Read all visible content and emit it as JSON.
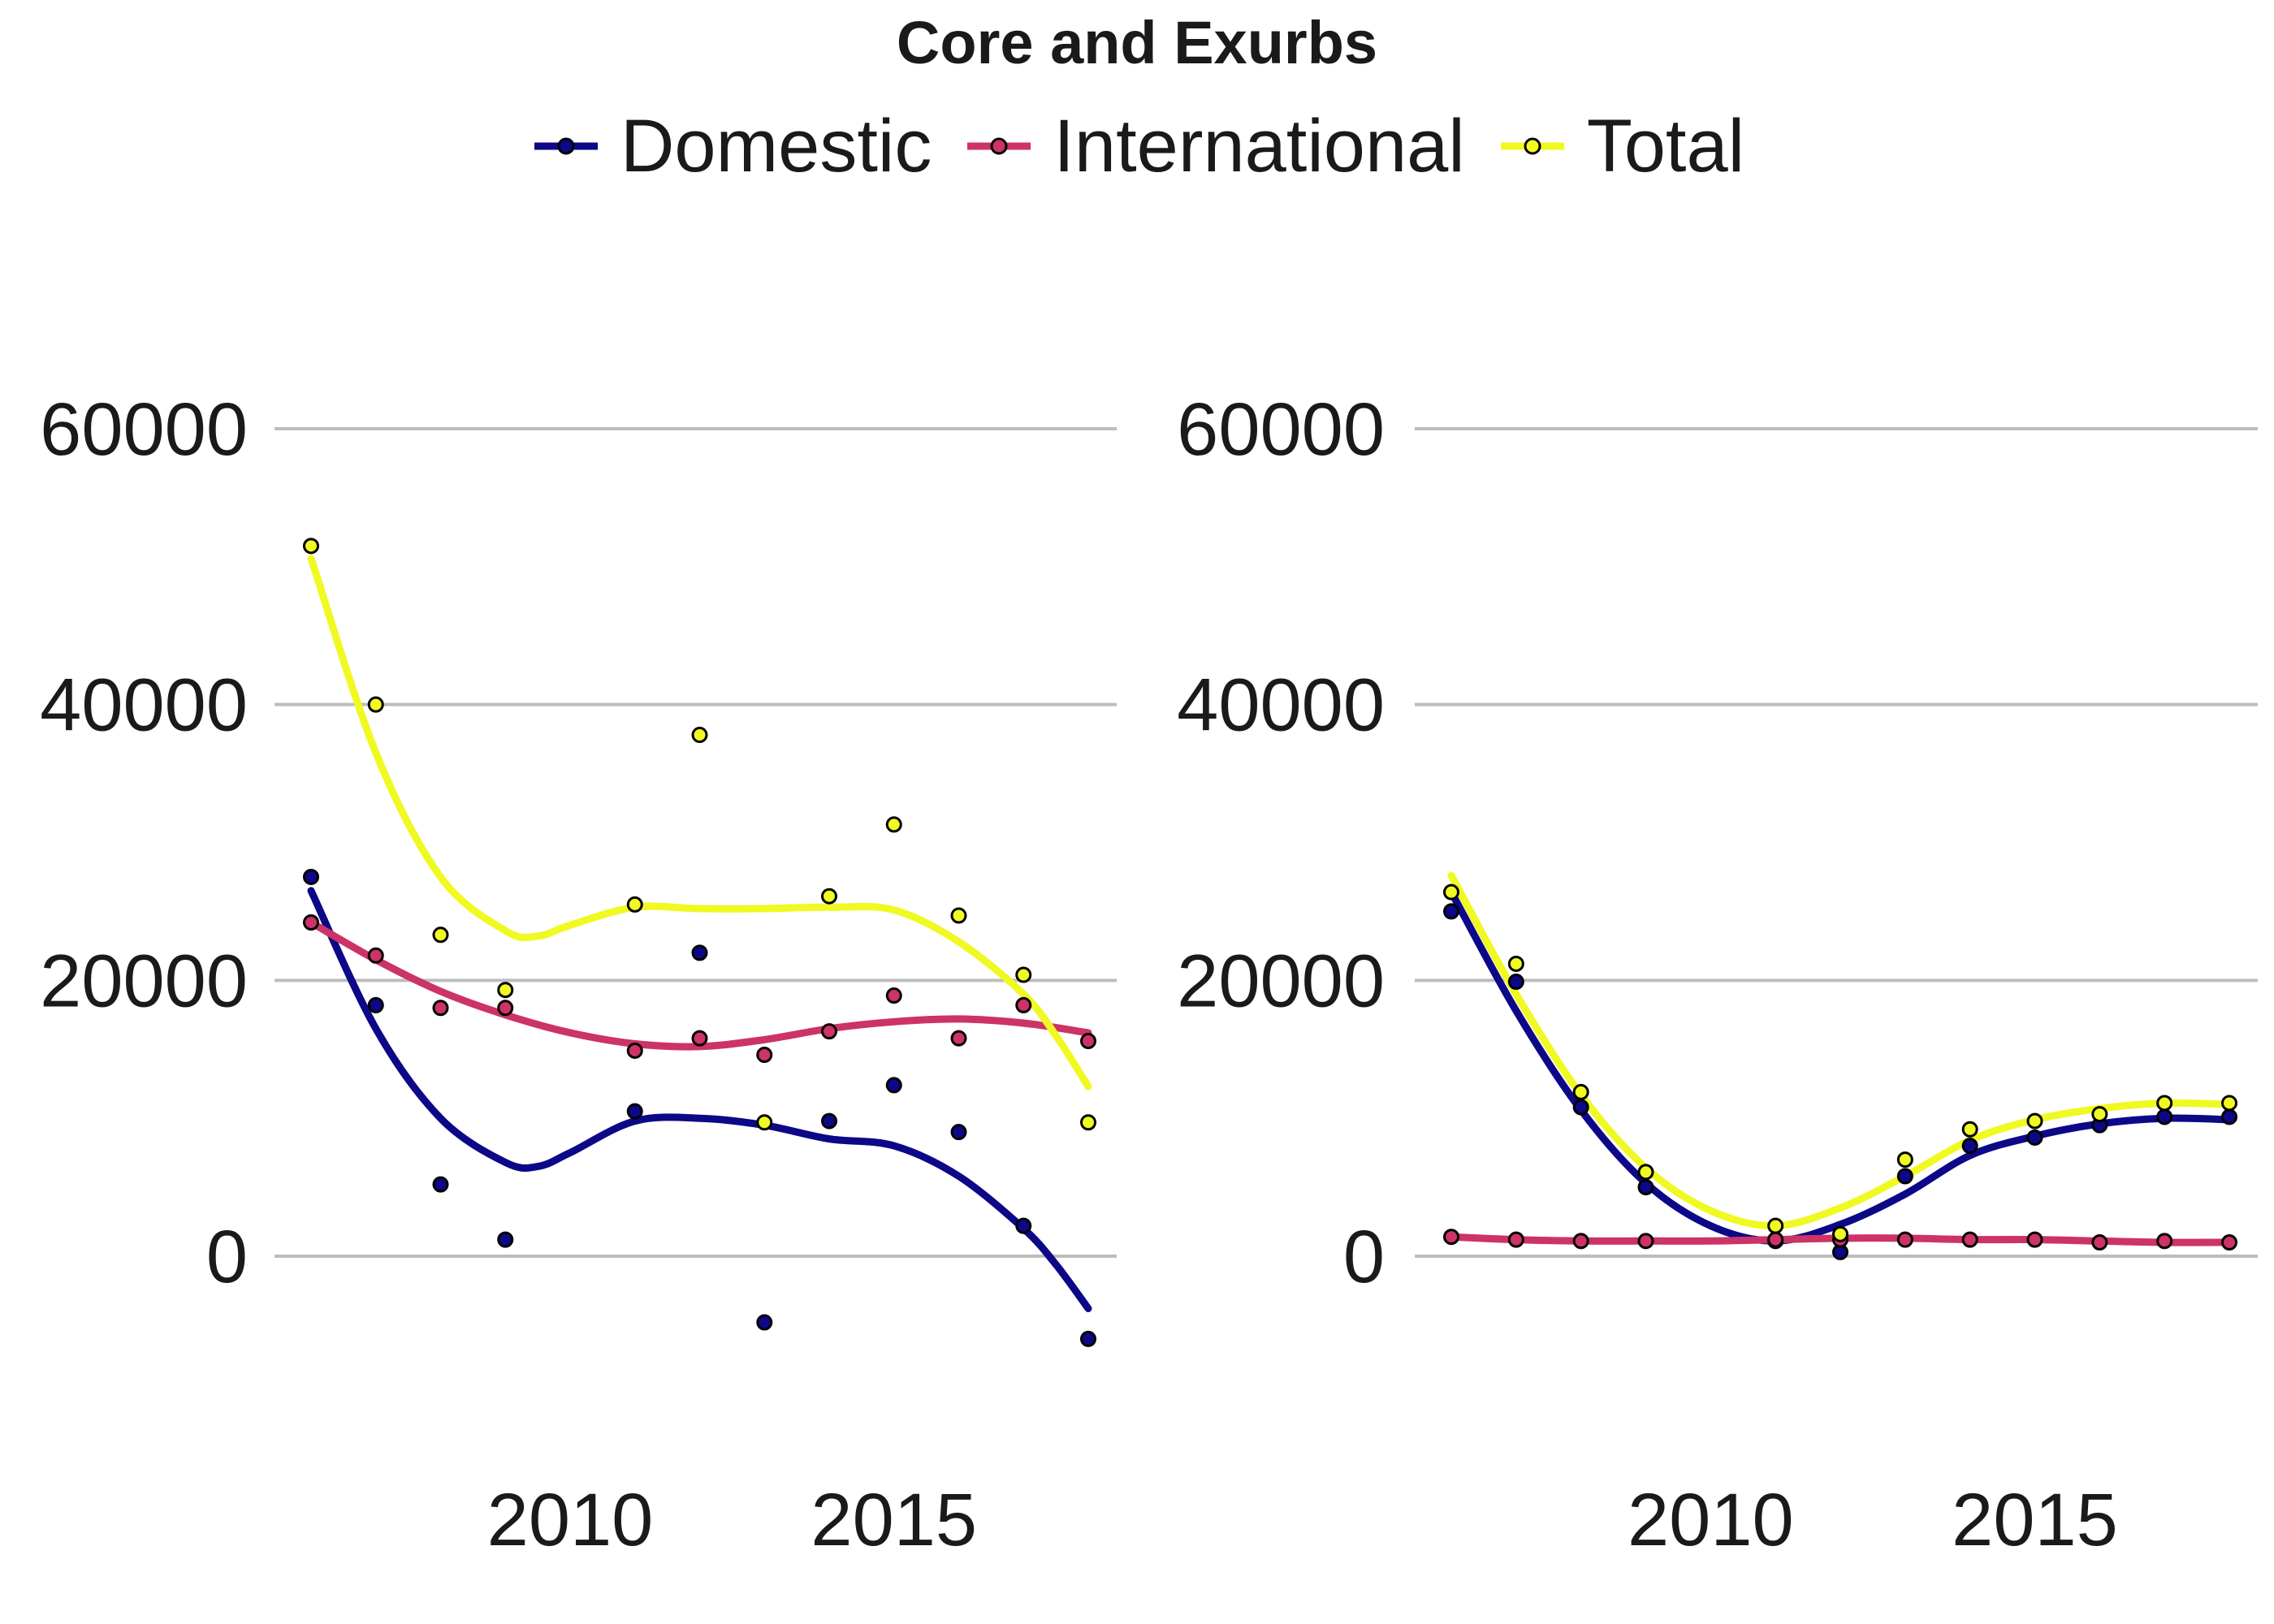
{
  "title": "Core and Exurbs",
  "legend": [
    {
      "name": "Domestic",
      "color": "#0d0887"
    },
    {
      "name": "International",
      "color": "#cc3366"
    },
    {
      "name": "Total",
      "color": "#f0f921"
    }
  ],
  "colors": {
    "grid": "#bdbdbd",
    "point_stroke": "#000000"
  },
  "chart_data": [
    {
      "type": "scatter",
      "title": "",
      "xlim": [
        2005.5,
        2019
      ],
      "ylim": [
        -12000,
        67000
      ],
      "y_ticks": [
        0,
        20000,
        40000,
        60000
      ],
      "x_ticks": [
        2010,
        2015
      ],
      "grid": "horizontal",
      "series": [
        {
          "name": "Domestic",
          "points": [
            [
              2006,
              27500
            ],
            [
              2007,
              18200
            ],
            [
              2008,
              5200
            ],
            [
              2009,
              1200
            ],
            [
              2011,
              10500
            ],
            [
              2012,
              22000
            ],
            [
              2013,
              -4800
            ],
            [
              2014,
              9800
            ],
            [
              2015,
              12400
            ],
            [
              2016,
              9000
            ],
            [
              2017,
              2200
            ],
            [
              2018,
              -6000
            ]
          ],
          "smooth": [
            [
              2006,
              26500
            ],
            [
              2007,
              16500
            ],
            [
              2008,
              10000
            ],
            [
              2009,
              6800
            ],
            [
              2009.5,
              6500
            ],
            [
              2010,
              7500
            ],
            [
              2011,
              9800
            ],
            [
              2012,
              10000
            ],
            [
              2013,
              9500
            ],
            [
              2014,
              8500
            ],
            [
              2015,
              8000
            ],
            [
              2016,
              5800
            ],
            [
              2017,
              2000
            ],
            [
              2017.5,
              -600
            ],
            [
              2018,
              -3800
            ]
          ]
        },
        {
          "name": "International",
          "points": [
            [
              2006,
              24200
            ],
            [
              2007,
              21800
            ],
            [
              2008,
              18000
            ],
            [
              2009,
              18000
            ],
            [
              2011,
              14900
            ],
            [
              2012,
              15800
            ],
            [
              2013,
              14600
            ],
            [
              2014,
              16300
            ],
            [
              2015,
              18900
            ],
            [
              2016,
              15800
            ],
            [
              2017,
              18200
            ],
            [
              2018,
              15600
            ]
          ],
          "smooth": [
            [
              2006,
              24200
            ],
            [
              2007,
              21500
            ],
            [
              2008,
              19200
            ],
            [
              2009,
              17500
            ],
            [
              2010,
              16200
            ],
            [
              2011,
              15400
            ],
            [
              2012,
              15200
            ],
            [
              2013,
              15700
            ],
            [
              2014,
              16500
            ],
            [
              2015,
              17000
            ],
            [
              2016,
              17200
            ],
            [
              2017,
              16900
            ],
            [
              2018,
              16200
            ]
          ]
        },
        {
          "name": "Total",
          "points": [
            [
              2006,
              51500
            ],
            [
              2007,
              40000
            ],
            [
              2008,
              23300
            ],
            [
              2009,
              19300
            ],
            [
              2011,
              25500
            ],
            [
              2012,
              37800
            ],
            [
              2013,
              9700
            ],
            [
              2014,
              26100
            ],
            [
              2015,
              31300
            ],
            [
              2016,
              24700
            ],
            [
              2017,
              20400
            ],
            [
              2018,
              9700
            ]
          ],
          "smooth": [
            [
              2006,
              50600
            ],
            [
              2007,
              36500
            ],
            [
              2008,
              27500
            ],
            [
              2009,
              23600
            ],
            [
              2009.5,
              23200
            ],
            [
              2010,
              24000
            ],
            [
              2011,
              25300
            ],
            [
              2012,
              25200
            ],
            [
              2013,
              25200
            ],
            [
              2014,
              25300
            ],
            [
              2015,
              25100
            ],
            [
              2016,
              22800
            ],
            [
              2017,
              19000
            ],
            [
              2017.5,
              16000
            ],
            [
              2018,
              12300
            ]
          ]
        }
      ]
    },
    {
      "type": "scatter",
      "title": "",
      "xlim": [
        2005.5,
        2019
      ],
      "ylim": [
        -12000,
        67000
      ],
      "y_ticks": [
        0,
        20000,
        40000,
        60000
      ],
      "x_ticks": [
        2010,
        2015
      ],
      "grid": "horizontal",
      "series": [
        {
          "name": "Domestic",
          "points": [
            [
              2006,
              25000
            ],
            [
              2007,
              19900
            ],
            [
              2008,
              10800
            ],
            [
              2009,
              5000
            ],
            [
              2011,
              1100
            ],
            [
              2012,
              300
            ],
            [
              2013,
              5800
            ],
            [
              2014,
              8000
            ],
            [
              2015,
              8600
            ],
            [
              2016,
              9500
            ],
            [
              2017,
              10100
            ],
            [
              2018,
              10100
            ]
          ],
          "smooth": [
            [
              2006,
              26400
            ],
            [
              2007,
              17800
            ],
            [
              2008,
              10600
            ],
            [
              2009,
              5300
            ],
            [
              2010,
              2200
            ],
            [
              2011,
              1100
            ],
            [
              2012,
              2300
            ],
            [
              2013,
              4500
            ],
            [
              2014,
              7300
            ],
            [
              2015,
              8700
            ],
            [
              2016,
              9600
            ],
            [
              2017,
              10000
            ],
            [
              2018,
              9900
            ]
          ]
        },
        {
          "name": "International",
          "points": [
            [
              2006,
              1400
            ],
            [
              2007,
              1200
            ],
            [
              2008,
              1100
            ],
            [
              2009,
              1100
            ],
            [
              2011,
              1200
            ],
            [
              2012,
              1200
            ],
            [
              2013,
              1200
            ],
            [
              2014,
              1200
            ],
            [
              2015,
              1200
            ],
            [
              2016,
              1000
            ],
            [
              2017,
              1100
            ],
            [
              2018,
              1000
            ]
          ],
          "smooth": [
            [
              2006,
              1400
            ],
            [
              2007,
              1200
            ],
            [
              2008,
              1100
            ],
            [
              2009,
              1100
            ],
            [
              2010,
              1100
            ],
            [
              2011,
              1200
            ],
            [
              2012,
              1300
            ],
            [
              2013,
              1300
            ],
            [
              2014,
              1200
            ],
            [
              2015,
              1200
            ],
            [
              2016,
              1100
            ],
            [
              2017,
              1000
            ],
            [
              2018,
              1000
            ]
          ]
        },
        {
          "name": "Total",
          "points": [
            [
              2006,
              26400
            ],
            [
              2007,
              21200
            ],
            [
              2008,
              11900
            ],
            [
              2009,
              6100
            ],
            [
              2011,
              2200
            ],
            [
              2012,
              1600
            ],
            [
              2013,
              7000
            ],
            [
              2014,
              9200
            ],
            [
              2015,
              9800
            ],
            [
              2016,
              10300
            ],
            [
              2017,
              11100
            ],
            [
              2018,
              11100
            ]
          ],
          "smooth": [
            [
              2006,
              27600
            ],
            [
              2007,
              19000
            ],
            [
              2008,
              11700
            ],
            [
              2009,
              6400
            ],
            [
              2010,
              3300
            ],
            [
              2011,
              2200
            ],
            [
              2012,
              3500
            ],
            [
              2013,
              5800
            ],
            [
              2014,
              8400
            ],
            [
              2015,
              9900
            ],
            [
              2016,
              10700
            ],
            [
              2017,
              11100
            ],
            [
              2018,
              11000
            ]
          ]
        }
      ]
    }
  ]
}
